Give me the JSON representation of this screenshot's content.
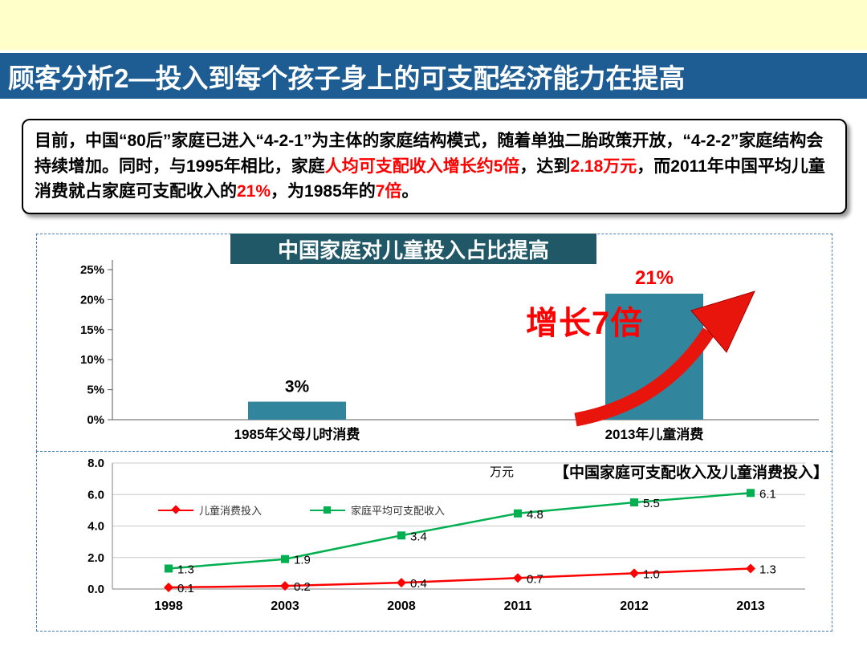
{
  "page": {
    "background": "#FFFFFF",
    "top_band_color": "#FFFFC9",
    "accent_red": "#FF0000"
  },
  "header": {
    "title": "顾客分析2—投入到每个孩子身上的可支配经济能力在提高",
    "background": "#1E5C94"
  },
  "intro": {
    "segments": [
      {
        "text": "目前，中国“80后”家庭已进入“4-2-1”为主体的家庭结构模式，随着单独二胎政策开放，“4-2-2”家庭结构会持续增加。同时，与1995年相比，家庭",
        "red": false
      },
      {
        "text": "人均可支配收入增长约5倍",
        "red": true
      },
      {
        "text": "，达到",
        "red": false
      },
      {
        "text": "2.18万元",
        "red": true
      },
      {
        "text": "，而2011年中国平均儿童消费就占家庭可支配收入的",
        "red": false
      },
      {
        "text": "21%",
        "red": true
      },
      {
        "text": "，为1985年的",
        "red": false
      },
      {
        "text": "7倍",
        "red": true
      },
      {
        "text": "。",
        "red": false
      }
    ]
  },
  "chart_data": [
    {
      "type": "bar",
      "title": "中国家庭对儿童投入占比提高",
      "categories": [
        "1985年父母儿时消费",
        "2013年儿童消费"
      ],
      "values": [
        3,
        21
      ],
      "value_labels": [
        "3%",
        "21%"
      ],
      "value_label_colors": [
        "#000000",
        "#FF0000"
      ],
      "ylim": [
        0,
        25
      ],
      "yticks": [
        "0%",
        "5%",
        "10%",
        "15%",
        "20%",
        "25%"
      ],
      "bar_color": "#31859C",
      "annotation": "增长7倍",
      "annotation_color": "#FF0000",
      "arrow_color": "#E8150D",
      "grid": false,
      "legend": false
    },
    {
      "type": "line",
      "title": "【中国家庭可支配收入及儿童消费投入】",
      "unit_label": "万元",
      "categories": [
        "1998",
        "2003",
        "2008",
        "2011",
        "2012",
        "2013"
      ],
      "series": [
        {
          "name": "儿童消费投入",
          "color": "#FF0000",
          "marker": "diamond",
          "values": [
            0.1,
            0.2,
            0.4,
            0.7,
            1.0,
            1.3
          ]
        },
        {
          "name": "家庭平均可支配收入",
          "color": "#00B050",
          "marker": "square",
          "values": [
            1.3,
            1.9,
            3.4,
            4.8,
            5.5,
            6.1
          ]
        }
      ],
      "ylim": [
        0,
        8
      ],
      "yticks": [
        "0.0",
        "2.0",
        "4.0",
        "6.0",
        "8.0"
      ],
      "grid": true,
      "legend_position": "top-left-inside"
    }
  ]
}
